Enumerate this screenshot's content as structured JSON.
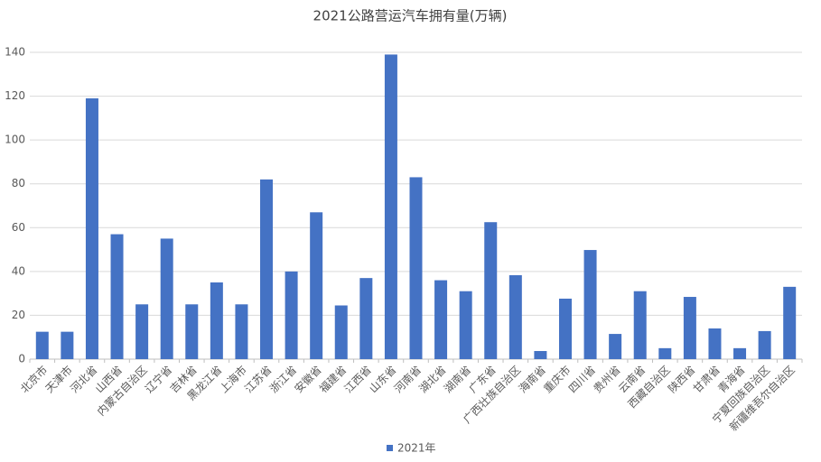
{
  "chart_data": {
    "type": "bar",
    "title": "2021公路营运汽车拥有量(万辆)",
    "categories": [
      "北京市",
      "天津市",
      "河北省",
      "山西省",
      "内蒙古自治区",
      "辽宁省",
      "吉林省",
      "黑龙江省",
      "上海市",
      "江苏省",
      "浙江省",
      "安徽省",
      "福建省",
      "江西省",
      "山东省",
      "河南省",
      "湖北省",
      "湖南省",
      "广东省",
      "广西壮族自治区",
      "海南省",
      "重庆市",
      "四川省",
      "贵州省",
      "云南省",
      "西藏自治区",
      "陕西省",
      "甘肃省",
      "青海省",
      "宁夏回族自治区",
      "新疆维吾尔自治区"
    ],
    "series": [
      {
        "name": "2021年",
        "color": "#4472c4",
        "values": [
          12.5,
          12.5,
          119,
          57,
          25,
          55,
          25,
          35,
          25,
          82,
          40,
          67,
          24.5,
          37,
          139,
          83,
          36,
          31,
          62.5,
          38.3,
          3.7,
          27.6,
          49.8,
          11.5,
          31,
          5,
          28.4,
          14,
          5,
          12.8,
          33
        ]
      }
    ],
    "ylim": [
      0,
      140
    ],
    "yticks": [
      0,
      20,
      40,
      60,
      80,
      100,
      120,
      140
    ],
    "grid": true,
    "legend": "bottom"
  }
}
